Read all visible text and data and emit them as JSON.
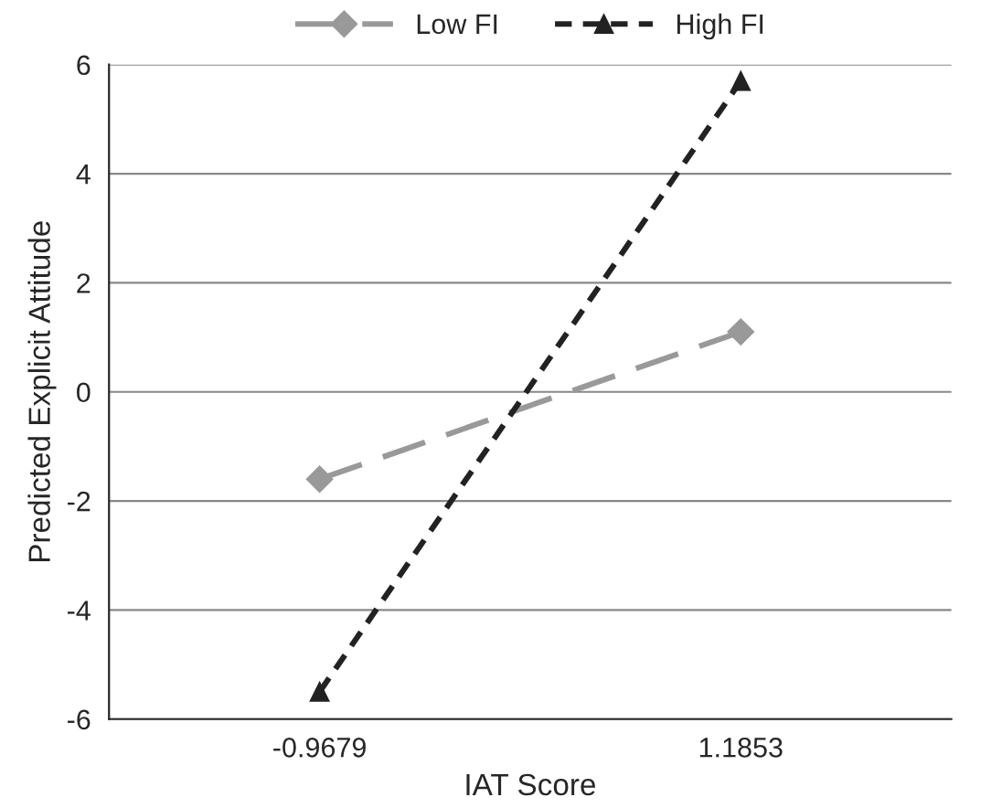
{
  "chart_data": {
    "type": "line",
    "xlabel": "IAT Score",
    "ylabel": "Predicted Explicit Attitude",
    "categories": [
      "-0.9679",
      "1.1853"
    ],
    "series": [
      {
        "name": "Low FI",
        "color": "#999999",
        "values": [
          -1.6,
          1.1
        ],
        "marker": "diamond",
        "line_style": "dashed"
      },
      {
        "name": "High FI",
        "color": "#222222",
        "values": [
          -5.5,
          5.7
        ],
        "marker": "triangle",
        "line_style": "dotted"
      }
    ],
    "ylim": [
      -6,
      6
    ],
    "yticks": [
      -6,
      -4,
      -2,
      0,
      2,
      4,
      6
    ],
    "grid": "y",
    "legend": "top"
  }
}
